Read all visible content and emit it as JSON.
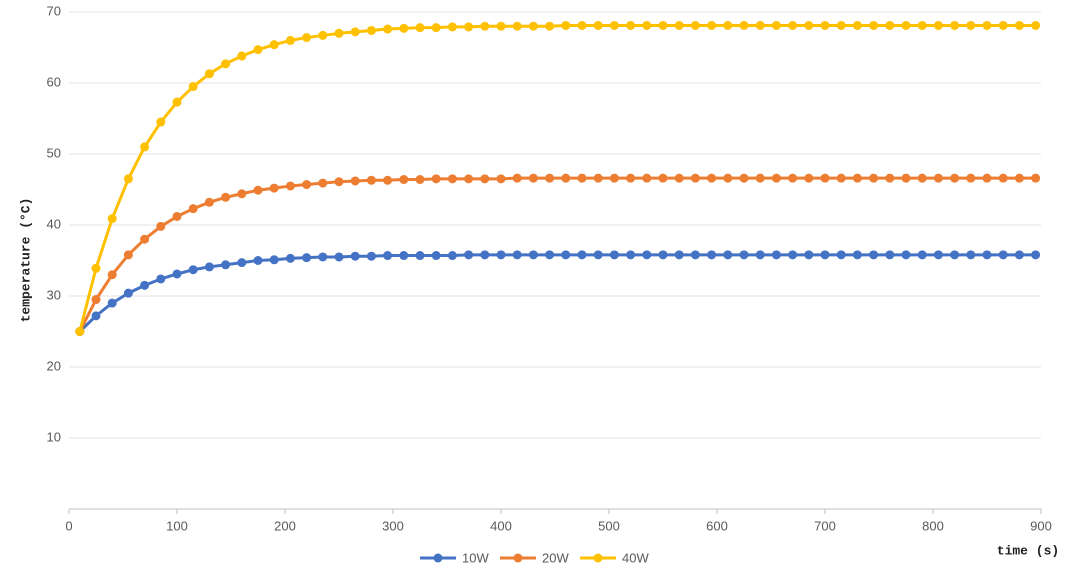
{
  "chart_data": {
    "type": "line",
    "x_label": "time (s)",
    "y_label": "temperature (°C)",
    "x": [
      10,
      25,
      40,
      55,
      70,
      85,
      100,
      115,
      130,
      145,
      160,
      175,
      190,
      205,
      220,
      235,
      250,
      265,
      280,
      295,
      310,
      325,
      340,
      355,
      370,
      385,
      400,
      415,
      430,
      445,
      460,
      475,
      490,
      505,
      520,
      535,
      550,
      565,
      580,
      595,
      610,
      625,
      640,
      655,
      670,
      685,
      700,
      715,
      730,
      745,
      760,
      775,
      790,
      805,
      820,
      835,
      850,
      865,
      880,
      895
    ],
    "series": [
      {
        "name": "10W",
        "color": "#4472c4",
        "values": [
          25.0,
          27.2,
          29.0,
          30.4,
          31.5,
          32.4,
          33.1,
          33.7,
          34.1,
          34.4,
          34.7,
          35.0,
          35.1,
          35.3,
          35.4,
          35.5,
          35.5,
          35.6,
          35.6,
          35.7,
          35.7,
          35.7,
          35.7,
          35.7,
          35.8,
          35.8,
          35.8,
          35.8,
          35.8,
          35.8,
          35.8,
          35.8,
          35.8,
          35.8,
          35.8,
          35.8,
          35.8,
          35.8,
          35.8,
          35.8,
          35.8,
          35.8,
          35.8,
          35.8,
          35.8,
          35.8,
          35.8,
          35.8,
          35.8,
          35.8,
          35.8,
          35.8,
          35.8,
          35.8,
          35.8,
          35.8,
          35.8,
          35.8,
          35.8,
          35.8
        ]
      },
      {
        "name": "20W",
        "color": "#ed7d31",
        "values": [
          25.0,
          29.5,
          33.0,
          35.8,
          38.0,
          39.8,
          41.2,
          42.3,
          43.2,
          43.9,
          44.4,
          44.9,
          45.2,
          45.5,
          45.7,
          45.9,
          46.1,
          46.2,
          46.3,
          46.3,
          46.4,
          46.4,
          46.5,
          46.5,
          46.5,
          46.5,
          46.5,
          46.6,
          46.6,
          46.6,
          46.6,
          46.6,
          46.6,
          46.6,
          46.6,
          46.6,
          46.6,
          46.6,
          46.6,
          46.6,
          46.6,
          46.6,
          46.6,
          46.6,
          46.6,
          46.6,
          46.6,
          46.6,
          46.6,
          46.6,
          46.6,
          46.6,
          46.6,
          46.6,
          46.6,
          46.6,
          46.6,
          46.6,
          46.6,
          46.6
        ]
      },
      {
        "name": "40W",
        "color": "#ffc000",
        "values": [
          25.0,
          33.9,
          40.9,
          46.5,
          51.0,
          54.5,
          57.3,
          59.5,
          61.3,
          62.7,
          63.8,
          64.7,
          65.4,
          66.0,
          66.4,
          66.7,
          67.0,
          67.2,
          67.4,
          67.6,
          67.7,
          67.8,
          67.8,
          67.9,
          67.9,
          68.0,
          68.0,
          68.0,
          68.0,
          68.0,
          68.1,
          68.1,
          68.1,
          68.1,
          68.1,
          68.1,
          68.1,
          68.1,
          68.1,
          68.1,
          68.1,
          68.1,
          68.1,
          68.1,
          68.1,
          68.1,
          68.1,
          68.1,
          68.1,
          68.1,
          68.1,
          68.1,
          68.1,
          68.1,
          68.1,
          68.1,
          68.1,
          68.1,
          68.1,
          68.1
        ]
      }
    ],
    "xlim": [
      0,
      900
    ],
    "xticks": [
      0,
      100,
      200,
      300,
      400,
      500,
      600,
      700,
      800,
      900
    ],
    "ylim": [
      0,
      70
    ],
    "yticks": [
      10,
      20,
      30,
      40,
      50,
      60,
      70
    ],
    "grid": true,
    "legend": "bottom"
  }
}
